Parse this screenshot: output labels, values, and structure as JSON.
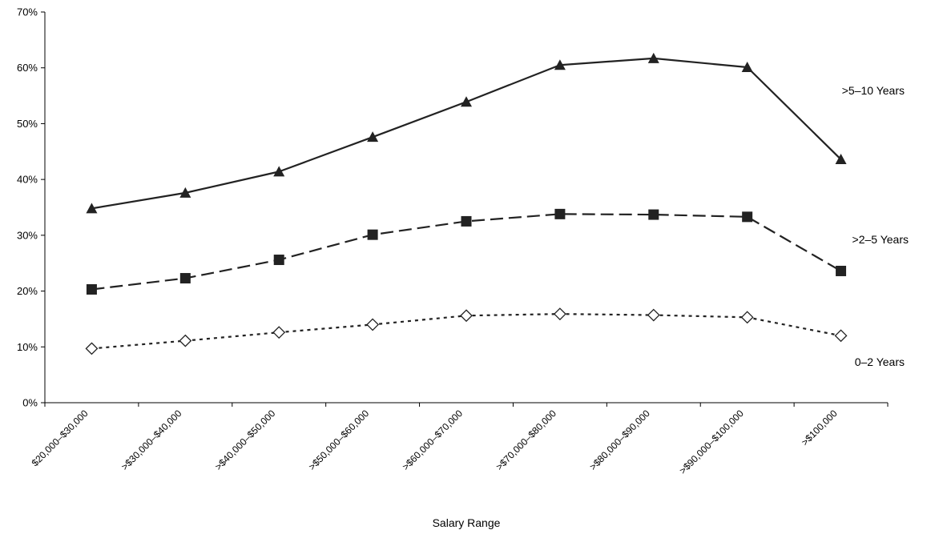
{
  "chart_data": {
    "type": "line",
    "xlabel": "Salary Range",
    "ylabel": "",
    "ylim": [
      0,
      70
    ],
    "y_ticks": [
      0,
      10,
      20,
      30,
      40,
      50,
      60,
      70
    ],
    "y_tick_labels": [
      "0%",
      "10%",
      "20%",
      "30%",
      "40%",
      "50%",
      "60%",
      "70%"
    ],
    "grid": false,
    "legend": "inline labels at right end of each line",
    "categories": [
      "$20,000–$30,000",
      ">$30,000–$40,000",
      ">$40,000–$50,000",
      ">$50,000–$60,000",
      ">$60,000–$70,000",
      ">$70,000–$80,000",
      ">$80,000–$90,000",
      ">$90,000–$100,000",
      ">$100,000"
    ],
    "series": [
      {
        "name": ">5–10 Years",
        "marker": "triangle-filled",
        "line_style": "solid",
        "values": [
          34.8,
          37.6,
          41.4,
          47.6,
          53.9,
          60.5,
          61.7,
          60.1,
          43.6
        ]
      },
      {
        "name": ">2–5 Years",
        "marker": "square-filled",
        "line_style": "dashed",
        "values": [
          20.3,
          22.3,
          25.6,
          30.1,
          32.5,
          33.8,
          33.7,
          33.3,
          23.6
        ]
      },
      {
        "name": "0–2 Years",
        "marker": "diamond-open",
        "line_style": "dotted",
        "values": [
          9.7,
          11.1,
          12.6,
          14.0,
          15.6,
          15.9,
          15.7,
          15.3,
          12.0
        ]
      }
    ],
    "colors": {
      "line": "#222222",
      "marker": "#222222",
      "axis": "#000000"
    }
  }
}
